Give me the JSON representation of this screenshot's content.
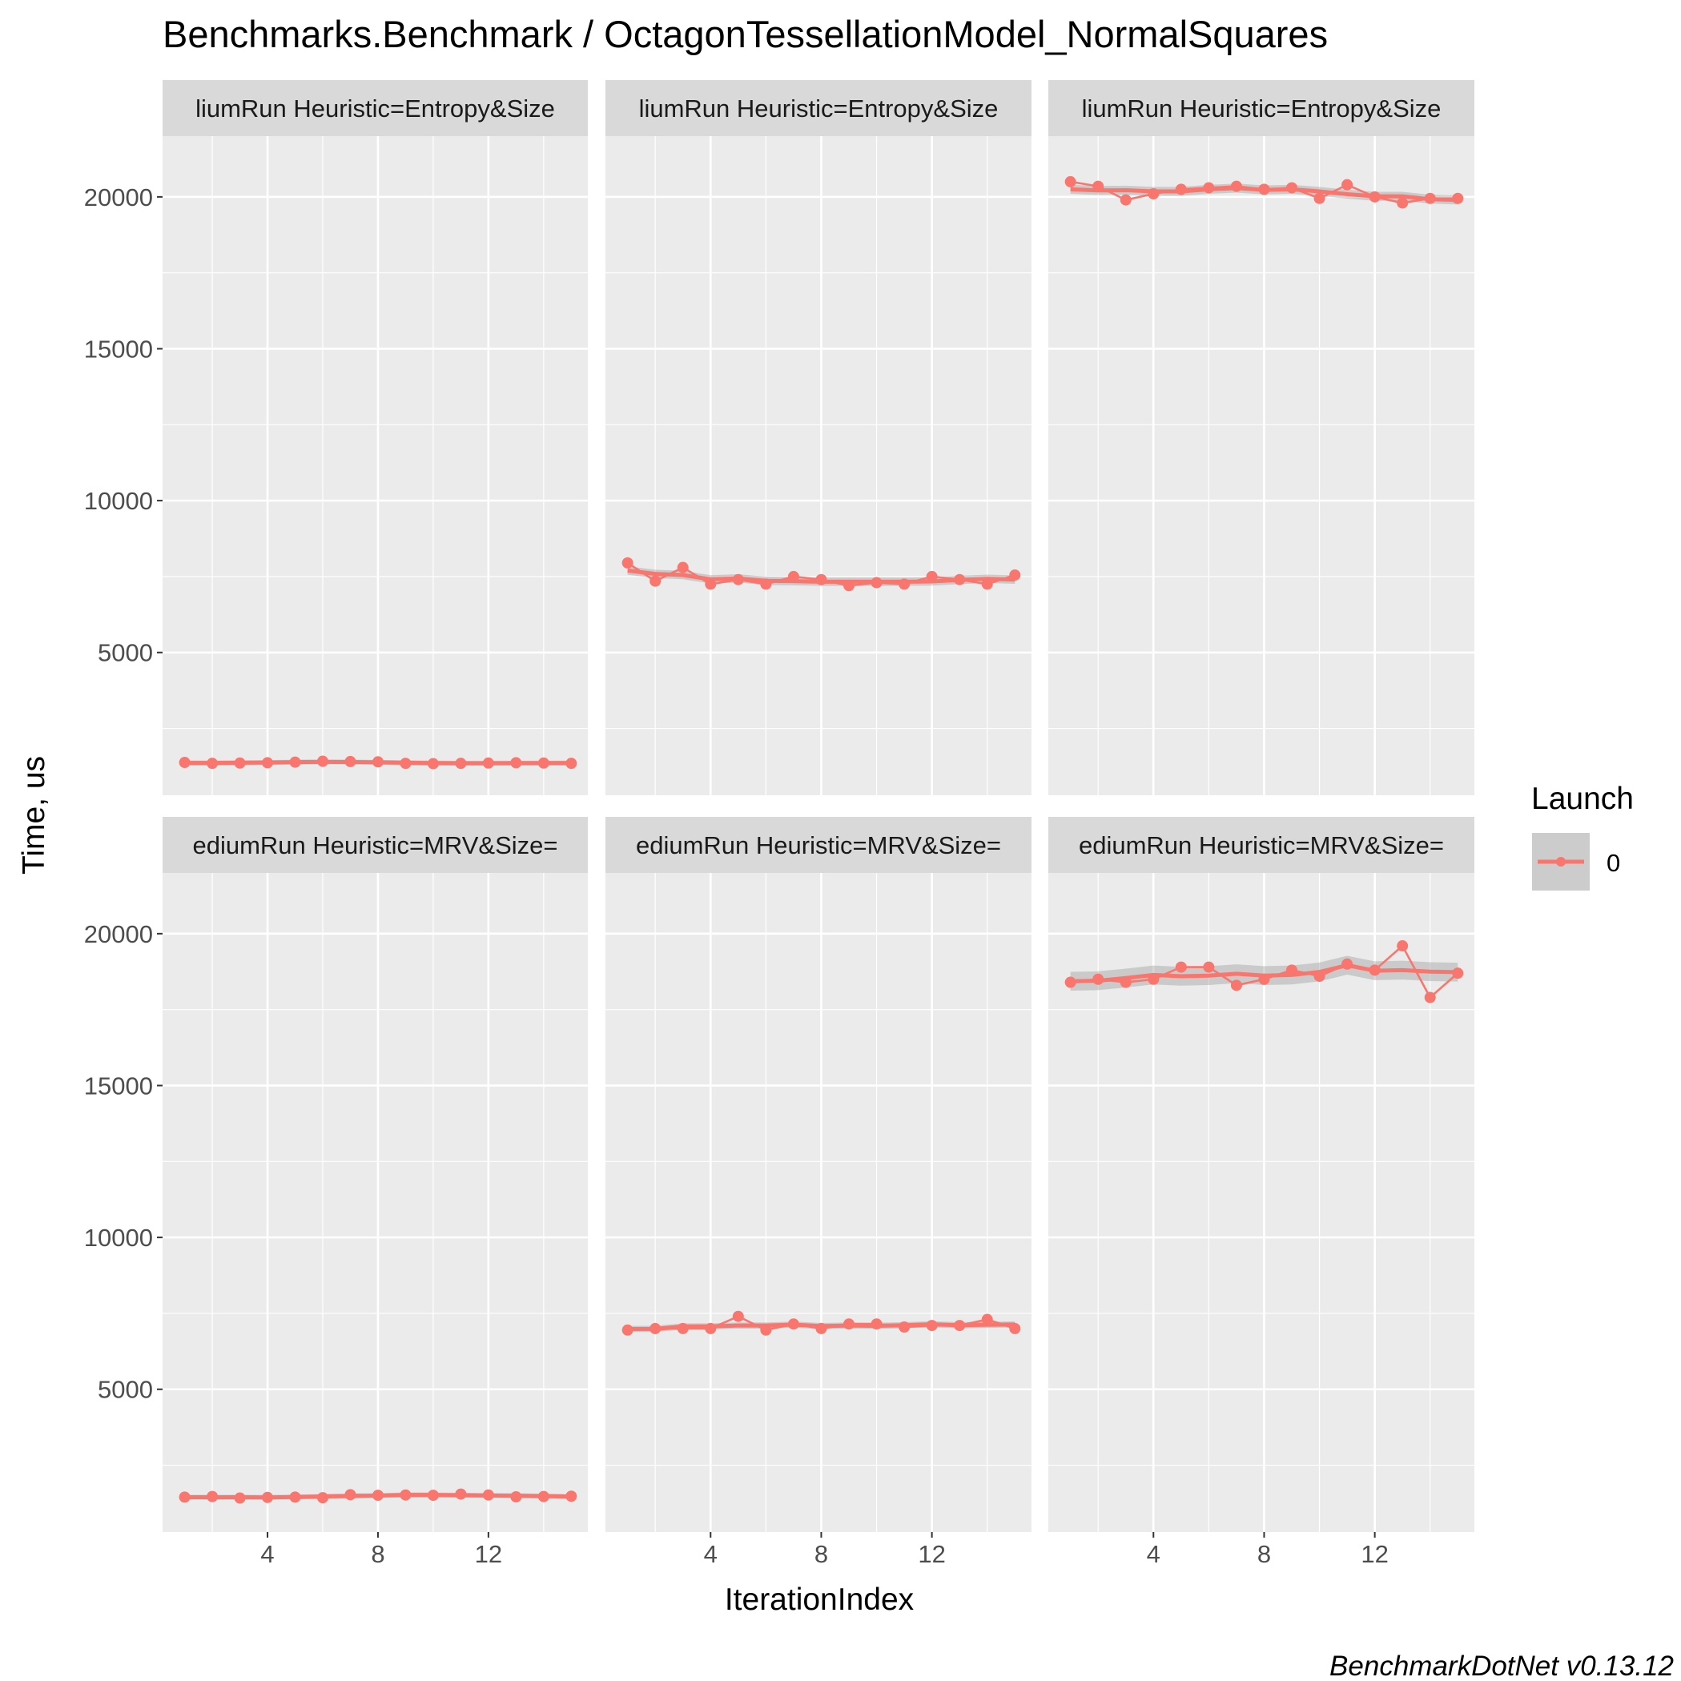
{
  "chart_data": {
    "type": "line",
    "title": "Benchmarks.Benchmark / OctagonTessellationModel_NormalSquares",
    "xlabel": "IterationIndex",
    "ylabel": "Time, us",
    "caption": "BenchmarkDotNet v0.13.12",
    "xlim": [
      0.2,
      15.6
    ],
    "ylim": [
      300,
      22000
    ],
    "x_ticks": [
      4,
      8,
      12
    ],
    "x_tick_labels": [
      "4",
      "8",
      "12"
    ],
    "y_ticks": [
      5000,
      10000,
      15000,
      20000
    ],
    "y_tick_labels": [
      "5000",
      "10000",
      "15000",
      "20000"
    ],
    "grid": true,
    "smooth": true,
    "legend": {
      "title": "Launch",
      "position": "right",
      "entries": [
        {
          "label": "0",
          "color": "#F8766D"
        }
      ]
    },
    "colors": {
      "series": "#F8766D",
      "ribbon": "#999999",
      "panel_bg": "#EBEBEB",
      "strip_bg": "#D9D9D9",
      "grid": "#FFFFFF"
    },
    "x": [
      1,
      2,
      3,
      4,
      5,
      6,
      7,
      8,
      9,
      10,
      11,
      12,
      13,
      14,
      15
    ],
    "panels": [
      {
        "row": 0,
        "col": 0,
        "strip": "liumRun Heuristic=Entropy&Size",
        "series": [
          {
            "name": "0",
            "values": [
              1380,
              1350,
              1360,
              1370,
              1390,
              1420,
              1410,
              1400,
              1350,
              1340,
              1350,
              1360,
              1370,
              1360,
              1350
            ]
          }
        ]
      },
      {
        "row": 0,
        "col": 1,
        "strip": "liumRun Heuristic=Entropy&Size",
        "series": [
          {
            "name": "0",
            "values": [
              7950,
              7350,
              7800,
              7250,
              7400,
              7250,
              7500,
              7400,
              7200,
              7300,
              7250,
              7500,
              7400,
              7250,
              7550
            ]
          }
        ]
      },
      {
        "row": 0,
        "col": 2,
        "strip": "liumRun Heuristic=Entropy&Size",
        "series": [
          {
            "name": "0",
            "values": [
              20500,
              20350,
              19900,
              20100,
              20250,
              20300,
              20350,
              20250,
              20300,
              19950,
              20400,
              20000,
              19800,
              19950,
              19950
            ]
          }
        ]
      },
      {
        "row": 1,
        "col": 0,
        "strip": "ediumRun Heuristic=MRV&Size=",
        "series": [
          {
            "name": "0",
            "values": [
              1450,
              1470,
              1420,
              1440,
              1450,
              1430,
              1530,
              1510,
              1520,
              1510,
              1550,
              1520,
              1460,
              1470,
              1480
            ]
          }
        ]
      },
      {
        "row": 1,
        "col": 1,
        "strip": "ediumRun Heuristic=MRV&Size=",
        "series": [
          {
            "name": "0",
            "values": [
              6950,
              7000,
              7000,
              7000,
              7400,
              6950,
              7150,
              7000,
              7150,
              7150,
              7050,
              7100,
              7100,
              7300,
              7000
            ]
          }
        ]
      },
      {
        "row": 1,
        "col": 2,
        "strip": "ediumRun Heuristic=MRV&Size=",
        "series": [
          {
            "name": "0",
            "values": [
              18400,
              18500,
              18400,
              18500,
              18900,
              18900,
              18300,
              18500,
              18800,
              18600,
              19000,
              18800,
              19600,
              17900,
              18700
            ]
          }
        ]
      }
    ]
  }
}
